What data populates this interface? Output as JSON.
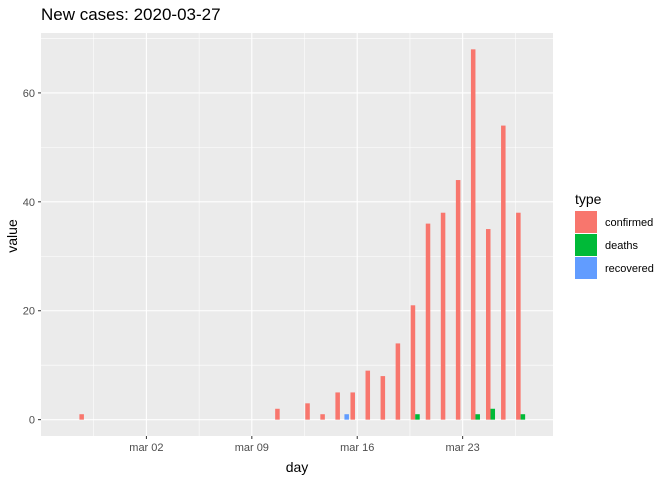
{
  "chart_data": {
    "type": "bar",
    "title": "New cases: 2020-03-27",
    "xlabel": "day",
    "ylabel": "value",
    "x_ticks": [
      "mar 02",
      "mar 09",
      "mar 16",
      "mar 23"
    ],
    "y_ticks": [
      0,
      20,
      40,
      60
    ],
    "ylim": [
      -3,
      71
    ],
    "xlim": [
      "2020-02-24",
      "2020-03-29"
    ],
    "grid": true,
    "legend": {
      "title": "type",
      "position": "right"
    },
    "series": [
      {
        "name": "confirmed",
        "color": "#F8766D",
        "points": [
          [
            "2020-02-27",
            1
          ],
          [
            "2020-03-11",
            2
          ],
          [
            "2020-03-13",
            3
          ],
          [
            "2020-03-14",
            1
          ],
          [
            "2020-03-15",
            5
          ],
          [
            "2020-03-16",
            5
          ],
          [
            "2020-03-17",
            9
          ],
          [
            "2020-03-18",
            8
          ],
          [
            "2020-03-19",
            14
          ],
          [
            "2020-03-20",
            21
          ],
          [
            "2020-03-21",
            36
          ],
          [
            "2020-03-22",
            38
          ],
          [
            "2020-03-23",
            44
          ],
          [
            "2020-03-24",
            68
          ],
          [
            "2020-03-25",
            35
          ],
          [
            "2020-03-26",
            54
          ],
          [
            "2020-03-27",
            38
          ]
        ]
      },
      {
        "name": "deaths",
        "color": "#00BA38",
        "points": [
          [
            "2020-03-20",
            1
          ],
          [
            "2020-03-24",
            1
          ],
          [
            "2020-03-25",
            2
          ],
          [
            "2020-03-27",
            1
          ]
        ]
      },
      {
        "name": "recovered",
        "color": "#619CFF",
        "points": [
          [
            "2020-03-15",
            1
          ]
        ]
      }
    ]
  }
}
